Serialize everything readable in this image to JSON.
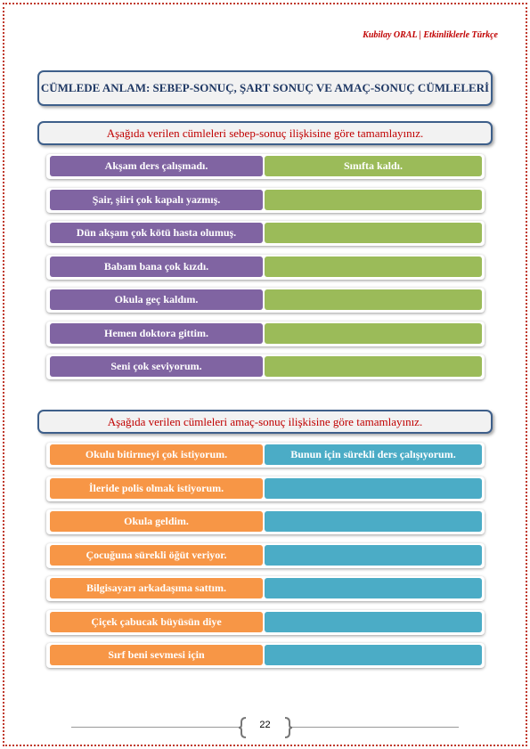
{
  "header": {
    "text": "Kubilay ORAL | Etkinliklerle Türkçe"
  },
  "title": "CÜMLEDE ANLAM: SEBEP-SONUÇ, ŞART SONUÇ VE AMAÇ-SONUÇ CÜMLELERİ",
  "sections": [
    {
      "instruction": "Aşağıda verilen cümleleri sebep-sonuç ilişkisine göre tamamlayınız.",
      "rows": [
        {
          "left": "Akşam ders çalışmadı.",
          "right": "Sınıfta kaldı."
        },
        {
          "left": "Şair, şiiri çok kapalı yazmış."
        },
        {
          "left": "Dün akşam çok kötü hasta olumuş."
        },
        {
          "left": "Babam bana çok kızdı."
        },
        {
          "left": "Okula geç kaldım."
        },
        {
          "left": "Hemen doktora gittim."
        },
        {
          "left": "Seni çok seviyorum."
        }
      ]
    },
    {
      "instruction": "Aşağıda verilen cümleleri amaç-sonuç ilişkisine göre tamamlayınız.",
      "rows": [
        {
          "left": "Okulu bitirmeyi çok istiyorum.",
          "right": "Bunun için sürekli ders çalışıyorum."
        },
        {
          "left": "İleride polis olmak istiyorum."
        },
        {
          "left": "Okula geldim."
        },
        {
          "left": "Çocuğuna sürekli öğüt veriyor."
        },
        {
          "left": "Bilgisayarı arkadaşıma sattım."
        },
        {
          "left": "Çiçek çabucak büyüsün diye"
        },
        {
          "left": "Sırf beni sevmesi için"
        }
      ]
    }
  ],
  "page_number": "22"
}
